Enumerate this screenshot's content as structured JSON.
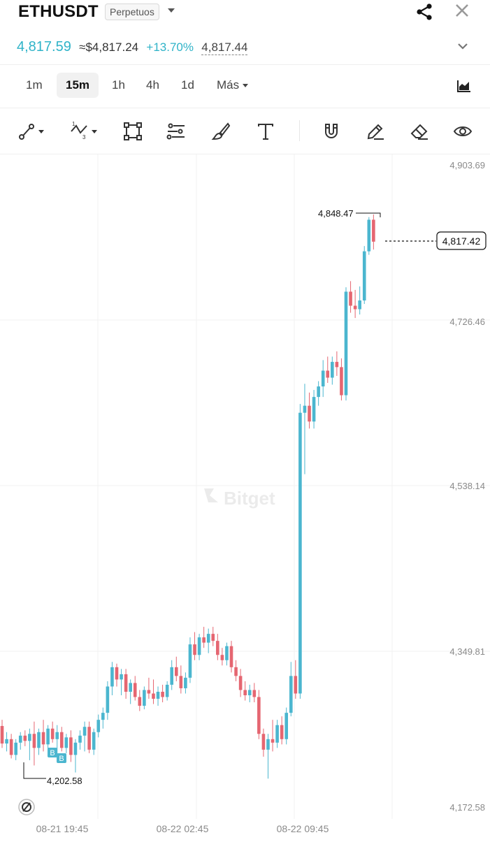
{
  "header": {
    "symbol": "ETHUSDT",
    "contract_type": "Perpetuos",
    "last_price": "4,817.59",
    "usd_price": "≈$4,817.24",
    "change_pct": "+13.70%",
    "mark_price": "4,817.44"
  },
  "timeframes": {
    "items": [
      "1m",
      "15m",
      "1h",
      "4h",
      "1d"
    ],
    "selected": "15m",
    "more_label": "Más"
  },
  "toolbar": {
    "icons": [
      "line-tool-icon",
      "fib-wave-tool-icon",
      "shape-tool-icon",
      "parallel-lines-icon",
      "brush-icon",
      "text-tool-icon",
      "magnet-icon",
      "pencil-icon",
      "eraser-icon",
      "eye-icon"
    ]
  },
  "chart": {
    "watermark": "Bitget",
    "y_ticks": [
      "4,903.69",
      "4,726.46",
      "4,538.14",
      "4,349.81",
      "4,172.58"
    ],
    "x_ticks": [
      "08-21 19:45",
      "08-22 02:45",
      "08-22 09:45"
    ],
    "high_label": "4,848.47",
    "low_label": "4,202.58",
    "current_price_tag": "4,817.42",
    "buy_markers": [
      "B",
      "B"
    ],
    "colors": {
      "up": "#4bb6cf",
      "down": "#e56671",
      "accent": "#2fb3c8"
    }
  },
  "chart_data": {
    "type": "candlestick",
    "interval": "15m",
    "y_ticks": [
      4903.69,
      4726.46,
      4538.14,
      4349.81,
      4172.58
    ],
    "x_labels": [
      "08-21 19:45",
      "08-22 02:45",
      "08-22 09:45"
    ],
    "highest": 4848.47,
    "lowest": 4202.58,
    "current": 4817.42,
    "candles": [
      [
        4265,
        4272,
        4240,
        4245
      ],
      [
        4245,
        4258,
        4236,
        4250
      ],
      [
        4250,
        4256,
        4228,
        4232
      ],
      [
        4232,
        4250,
        4226,
        4246
      ],
      [
        4246,
        4258,
        4238,
        4254
      ],
      [
        4254,
        4260,
        4242,
        4248
      ],
      [
        4248,
        4262,
        4226,
        4256
      ],
      [
        4256,
        4270,
        4220,
        4240
      ],
      [
        4240,
        4262,
        4232,
        4258
      ],
      [
        4258,
        4272,
        4236,
        4244
      ],
      [
        4244,
        4266,
        4238,
        4262
      ],
      [
        4262,
        4270,
        4246,
        4250
      ],
      [
        4250,
        4266,
        4234,
        4258
      ],
      [
        4258,
        4264,
        4236,
        4240
      ],
      [
        4240,
        4256,
        4234,
        4252
      ],
      [
        4252,
        4260,
        4224,
        4232
      ],
      [
        4232,
        4250,
        4212,
        4246
      ],
      [
        4246,
        4260,
        4238,
        4254
      ],
      [
        4254,
        4270,
        4236,
        4264
      ],
      [
        4264,
        4270,
        4234,
        4238
      ],
      [
        4238,
        4262,
        4232,
        4258
      ],
      [
        4258,
        4278,
        4252,
        4272
      ],
      [
        4272,
        4286,
        4262,
        4280
      ],
      [
        4280,
        4316,
        4272,
        4310
      ],
      [
        4310,
        4338,
        4300,
        4332
      ],
      [
        4332,
        4336,
        4310,
        4318
      ],
      [
        4318,
        4330,
        4300,
        4324
      ],
      [
        4324,
        4330,
        4296,
        4304
      ],
      [
        4304,
        4318,
        4290,
        4314
      ],
      [
        4314,
        4322,
        4294,
        4298
      ],
      [
        4298,
        4306,
        4282,
        4288
      ],
      [
        4288,
        4310,
        4284,
        4306
      ],
      [
        4306,
        4320,
        4296,
        4302
      ],
      [
        4302,
        4318,
        4290,
        4296
      ],
      [
        4296,
        4310,
        4288,
        4304
      ],
      [
        4304,
        4312,
        4292,
        4298
      ],
      [
        4298,
        4316,
        4294,
        4312
      ],
      [
        4312,
        4340,
        4306,
        4332
      ],
      [
        4332,
        4344,
        4316,
        4322
      ],
      [
        4322,
        4334,
        4302,
        4308
      ],
      [
        4308,
        4326,
        4302,
        4320
      ],
      [
        4320,
        4366,
        4314,
        4358
      ],
      [
        4358,
        4372,
        4340,
        4346
      ],
      [
        4346,
        4370,
        4340,
        4366
      ],
      [
        4366,
        4378,
        4354,
        4360
      ],
      [
        4360,
        4376,
        4348,
        4370
      ],
      [
        4370,
        4378,
        4356,
        4362
      ],
      [
        4362,
        4370,
        4340,
        4346
      ],
      [
        4346,
        4354,
        4334,
        4340
      ],
      [
        4340,
        4360,
        4334,
        4356
      ],
      [
        4356,
        4362,
        4326,
        4332
      ],
      [
        4332,
        4340,
        4316,
        4322
      ],
      [
        4322,
        4330,
        4298,
        4306
      ],
      [
        4306,
        4316,
        4294,
        4300
      ],
      [
        4300,
        4312,
        4292,
        4306
      ],
      [
        4306,
        4314,
        4292,
        4298
      ],
      [
        4298,
        4306,
        4250,
        4256
      ],
      [
        4256,
        4262,
        4230,
        4238
      ],
      [
        4238,
        4256,
        4205,
        4250
      ],
      [
        4250,
        4272,
        4236,
        4246
      ],
      [
        4246,
        4272,
        4240,
        4266
      ],
      [
        4266,
        4276,
        4244,
        4250
      ],
      [
        4250,
        4286,
        4244,
        4280
      ],
      [
        4280,
        4338,
        4276,
        4322
      ],
      [
        4322,
        4340,
        4296,
        4302
      ],
      [
        4302,
        4632,
        4296,
        4622
      ],
      [
        4622,
        4655,
        4552,
        4630
      ],
      [
        4630,
        4645,
        4604,
        4612
      ],
      [
        4612,
        4648,
        4604,
        4640
      ],
      [
        4640,
        4658,
        4630,
        4652
      ],
      [
        4652,
        4682,
        4640,
        4670
      ],
      [
        4670,
        4686,
        4656,
        4662
      ],
      [
        4662,
        4686,
        4654,
        4680
      ],
      [
        4680,
        4692,
        4664,
        4674
      ],
      [
        4674,
        4684,
        4636,
        4642
      ],
      [
        4642,
        4765,
        4636,
        4760
      ],
      [
        4760,
        4772,
        4736,
        4744
      ],
      [
        4744,
        4762,
        4730,
        4740
      ],
      [
        4740,
        4766,
        4734,
        4750
      ],
      [
        4750,
        4812,
        4746,
        4806
      ],
      [
        4806,
        4845,
        4802,
        4842
      ],
      [
        4842,
        4848,
        4808,
        4817
      ]
    ]
  }
}
